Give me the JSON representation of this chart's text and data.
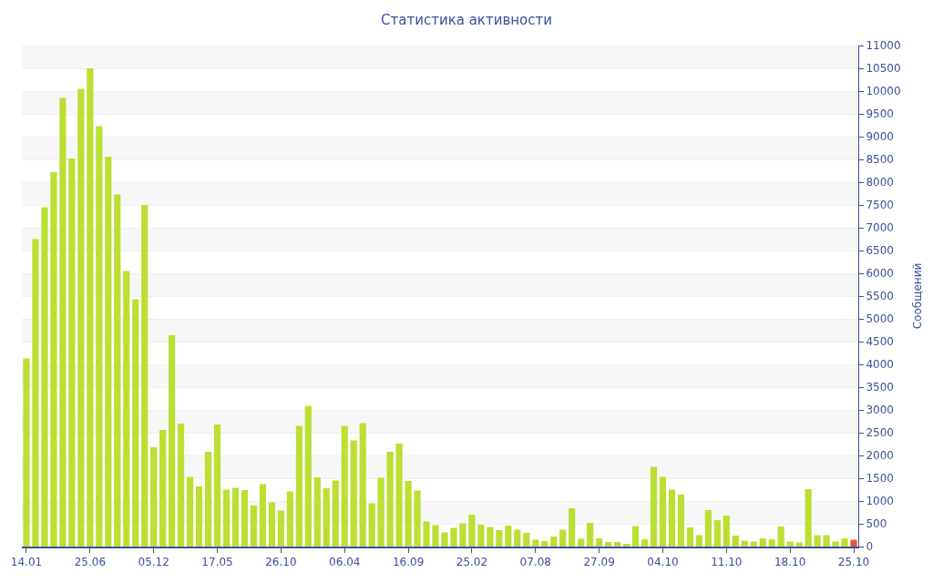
{
  "chart_data": {
    "type": "bar",
    "title": "Статистика активности",
    "ylabel": "Сообщений",
    "categories": [
      "14.01",
      null,
      null,
      null,
      null,
      null,
      null,
      "25.06",
      null,
      null,
      null,
      null,
      null,
      null,
      "05.12",
      null,
      null,
      null,
      null,
      null,
      null,
      "17.05",
      null,
      null,
      null,
      null,
      null,
      null,
      "26.10",
      null,
      null,
      null,
      null,
      null,
      null,
      "06.04",
      null,
      null,
      null,
      null,
      null,
      null,
      "16.09",
      null,
      null,
      null,
      null,
      null,
      null,
      "25.02",
      null,
      null,
      null,
      null,
      null,
      null,
      "07.08",
      null,
      null,
      null,
      null,
      null,
      null,
      "27.09",
      null,
      null,
      null,
      null,
      null,
      null,
      "04.10",
      null,
      null,
      null,
      null,
      null,
      null,
      "11.10",
      null,
      null,
      null,
      null,
      null,
      null,
      "18.10",
      null,
      null,
      null,
      null,
      null,
      null,
      "25.10"
    ],
    "values": [
      4130,
      6750,
      7450,
      8220,
      9850,
      8520,
      10050,
      10500,
      9230,
      8560,
      7730,
      6050,
      5430,
      7500,
      2180,
      2560,
      4640,
      2700,
      1530,
      1320,
      2080,
      2680,
      1250,
      1290,
      1240,
      900,
      1370,
      970,
      790,
      1210,
      2650,
      3090,
      1520,
      1280,
      1450,
      2650,
      2330,
      2710,
      950,
      1510,
      2080,
      2260,
      1440,
      1230,
      550,
      470,
      310,
      410,
      510,
      700,
      480,
      430,
      360,
      460,
      370,
      300,
      150,
      120,
      220,
      370,
      840,
      170,
      520,
      180,
      100,
      100,
      60,
      450,
      160,
      1750,
      1530,
      1250,
      1140,
      420,
      250,
      800,
      580,
      680,
      240,
      130,
      110,
      180,
      160,
      440,
      110,
      90,
      1260,
      250,
      250,
      110,
      180,
      150
    ],
    "colors": [
      "#bbdf32",
      "#bbdf32",
      "#bbdf32",
      "#bbdf32",
      "#bbdf32",
      "#bbdf32",
      "#bbdf32",
      "#bbdf32",
      "#bbdf32",
      "#bbdf32",
      "#bbdf32",
      "#bbdf32",
      "#bbdf32",
      "#bbdf32",
      "#bbdf32",
      "#bbdf32",
      "#bbdf32",
      "#bbdf32",
      "#bbdf32",
      "#bbdf32",
      "#bbdf32",
      "#bbdf32",
      "#bbdf32",
      "#bbdf32",
      "#bbdf32",
      "#bbdf32",
      "#bbdf32",
      "#bbdf32",
      "#bbdf32",
      "#bbdf32",
      "#bbdf32",
      "#bbdf32",
      "#bbdf32",
      "#bbdf32",
      "#bbdf32",
      "#bbdf32",
      "#bbdf32",
      "#bbdf32",
      "#bbdf32",
      "#bbdf32",
      "#bbdf32",
      "#bbdf32",
      "#bbdf32",
      "#bbdf32",
      "#bbdf32",
      "#bbdf32",
      "#bbdf32",
      "#bbdf32",
      "#bbdf32",
      "#bbdf32",
      "#bbdf32",
      "#bbdf32",
      "#bbdf32",
      "#bbdf32",
      "#bbdf32",
      "#bbdf32",
      "#bbdf32",
      "#bbdf32",
      "#bbdf32",
      "#bbdf32",
      "#bbdf32",
      "#bbdf32",
      "#bbdf32",
      "#bbdf32",
      "#bbdf32",
      "#bbdf32",
      "#bbdf32",
      "#bbdf32",
      "#bbdf32",
      "#bbdf32",
      "#bbdf32",
      "#bbdf32",
      "#bbdf32",
      "#bbdf32",
      "#bbdf32",
      "#bbdf32",
      "#bbdf32",
      "#bbdf32",
      "#bbdf32",
      "#bbdf32",
      "#bbdf32",
      "#bbdf32",
      "#bbdf32",
      "#bbdf32",
      "#bbdf32",
      "#bbdf32",
      "#bbdf32",
      "#bbdf32",
      "#bbdf32",
      "#bbdf32",
      "#bbdf32",
      "#e05a2b"
    ],
    "ylim": [
      0,
      11000
    ],
    "yticks": [
      0,
      500,
      1000,
      1500,
      2000,
      2500,
      3000,
      3500,
      4000,
      4500,
      5000,
      5500,
      6000,
      6500,
      7000,
      7500,
      8000,
      8500,
      9000,
      9500,
      10000,
      10500,
      11000
    ],
    "grid": true
  }
}
